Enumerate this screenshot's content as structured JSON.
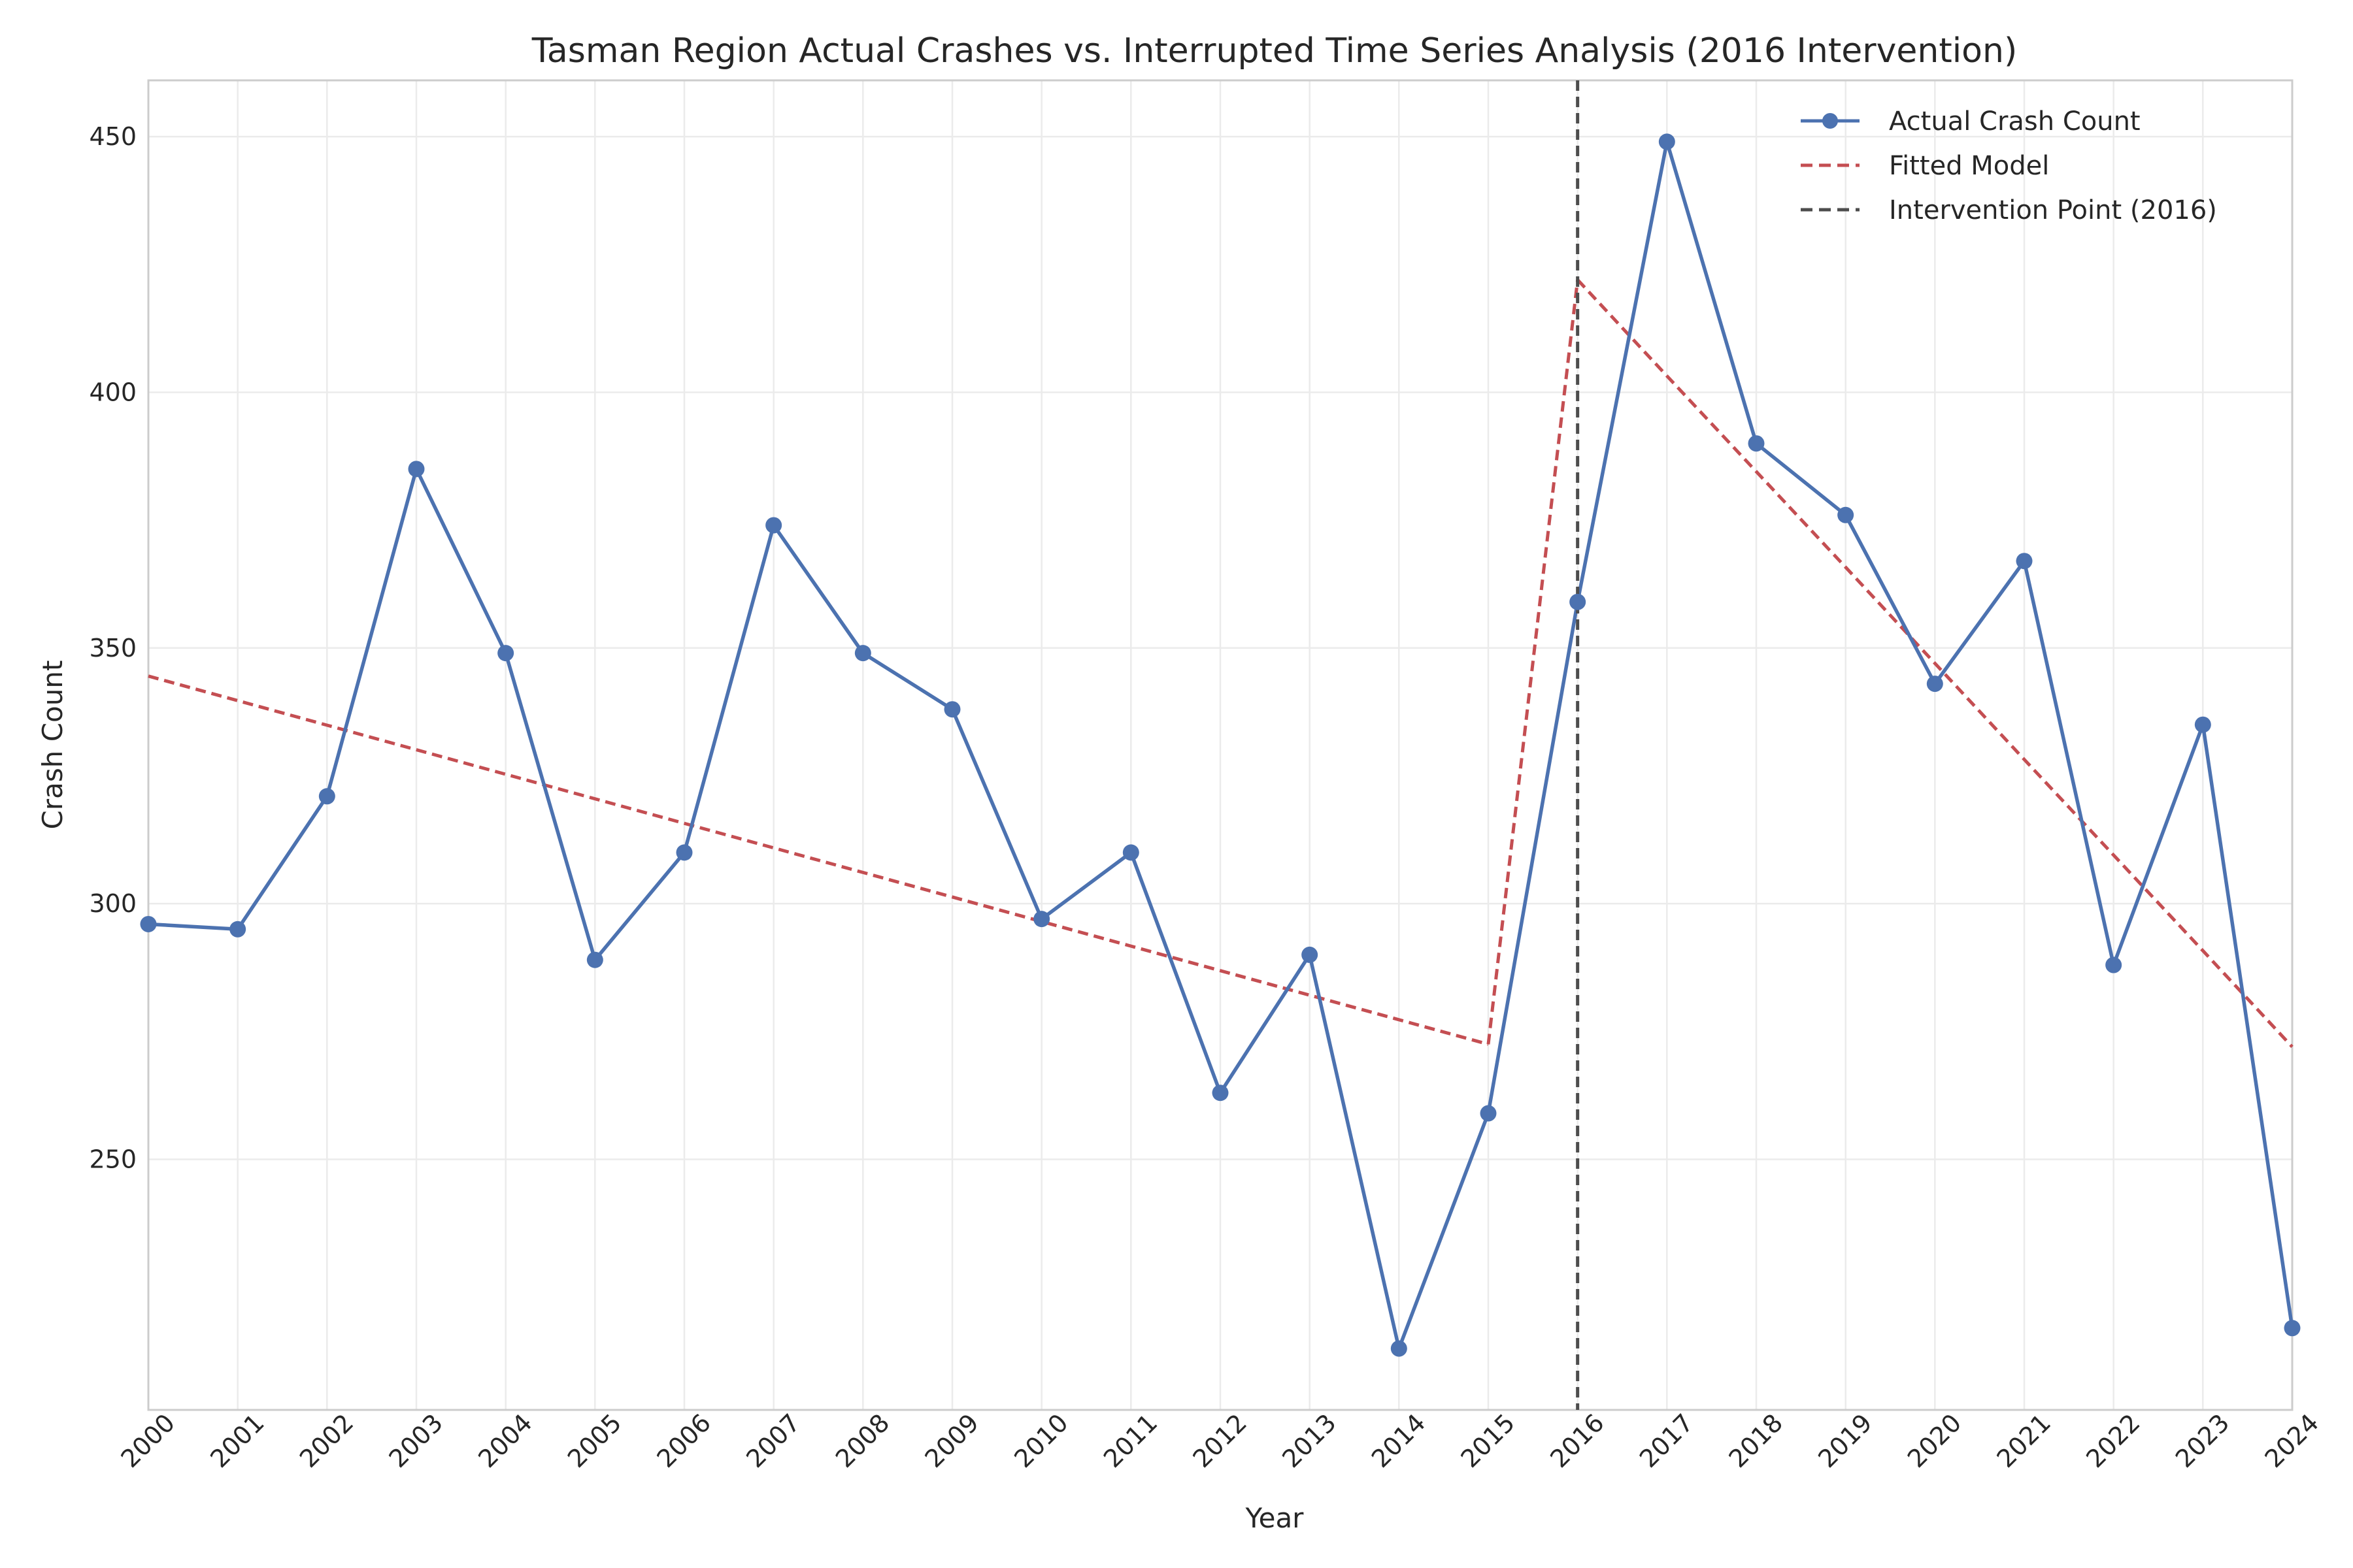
{
  "chart_data": {
    "type": "line",
    "title": "Tasman Region Actual Crashes vs. Interrupted Time Series Analysis (2016 Intervention)",
    "xlabel": "Year",
    "ylabel": "Crash Count",
    "xlim": [
      2000,
      2024
    ],
    "ylim": [
      201,
      461
    ],
    "x_ticks": [
      2000,
      2001,
      2002,
      2003,
      2004,
      2005,
      2006,
      2007,
      2008,
      2009,
      2010,
      2011,
      2012,
      2013,
      2014,
      2015,
      2016,
      2017,
      2018,
      2019,
      2020,
      2021,
      2022,
      2023,
      2024
    ],
    "y_ticks": [
      250,
      300,
      350,
      400,
      450
    ],
    "grid": true,
    "legend_position": "top-right",
    "series": [
      {
        "name": "Actual Crash Count",
        "style": "solid-with-markers",
        "color": "#4c72b0",
        "x": [
          2000,
          2001,
          2002,
          2003,
          2004,
          2005,
          2006,
          2007,
          2008,
          2009,
          2010,
          2011,
          2012,
          2013,
          2014,
          2015,
          2016,
          2017,
          2018,
          2019,
          2020,
          2021,
          2022,
          2023,
          2024
        ],
        "values": [
          296,
          295,
          321,
          385,
          349,
          289,
          310,
          374,
          349,
          338,
          297,
          310,
          263,
          290,
          213,
          259,
          359,
          449,
          390,
          376,
          343,
          367,
          288,
          335,
          217
        ]
      },
      {
        "name": "Fitted Model",
        "style": "dashed",
        "color": "#c44e52",
        "x": [
          2000,
          2001,
          2002,
          2003,
          2004,
          2005,
          2006,
          2007,
          2008,
          2009,
          2010,
          2011,
          2012,
          2013,
          2014,
          2015,
          2016,
          2017,
          2018,
          2019,
          2020,
          2021,
          2022,
          2023,
          2024
        ],
        "values": [
          344.5,
          339.7,
          334.9,
          330.1,
          325.3,
          320.5,
          315.7,
          310.9,
          306.1,
          301.3,
          296.5,
          291.7,
          286.9,
          282.1,
          277.3,
          272.5,
          422,
          403.2,
          384.5,
          365.8,
          347,
          328.2,
          309.5,
          290.8,
          272
        ]
      }
    ],
    "intervention": {
      "name": "Intervention Point (2016)",
      "x": 2016,
      "color": "#4d4d4d",
      "style": "dashed"
    }
  }
}
